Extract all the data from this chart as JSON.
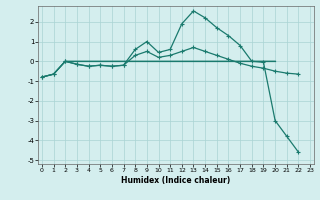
{
  "xlabel": "Humidex (Indice chaleur)",
  "background_color": "#d4eeee",
  "line_color": "#1a7a6e",
  "grid_color": "#aad4d4",
  "x": [
    0,
    1,
    2,
    3,
    4,
    5,
    6,
    7,
    8,
    9,
    10,
    11,
    12,
    13,
    14,
    15,
    16,
    17,
    18,
    19,
    20,
    21,
    22,
    23
  ],
  "series1_x": [
    0,
    1,
    2,
    3,
    4,
    5,
    6,
    7,
    8,
    9,
    10,
    11,
    12,
    13,
    14,
    15,
    16,
    17,
    18,
    19,
    20,
    21,
    22
  ],
  "series1_y": [
    -0.8,
    -0.65,
    0.0,
    -0.15,
    -0.25,
    -0.2,
    -0.25,
    -0.2,
    0.6,
    1.0,
    0.45,
    0.6,
    1.9,
    2.55,
    2.2,
    1.7,
    1.3,
    0.8,
    0.0,
    -0.05,
    -3.0,
    -3.8,
    -4.6
  ],
  "series2_x": [
    0,
    1,
    2,
    3,
    4,
    5,
    6,
    7,
    8,
    9,
    10,
    11,
    12,
    13,
    14,
    15,
    16,
    17,
    18,
    19,
    20,
    21,
    22
  ],
  "series2_y": [
    -0.8,
    -0.65,
    0.0,
    -0.15,
    -0.25,
    -0.2,
    -0.25,
    -0.2,
    0.3,
    0.5,
    0.2,
    0.3,
    0.5,
    0.7,
    0.5,
    0.3,
    0.1,
    -0.1,
    -0.25,
    -0.35,
    -0.5,
    -0.6,
    -0.65
  ],
  "series3_x": [
    2,
    3,
    4,
    5,
    6,
    7,
    8,
    9,
    10,
    11,
    12,
    13,
    14,
    15,
    16,
    17,
    18,
    19,
    20
  ],
  "series3_y": [
    0.0,
    0.0,
    0.0,
    0.0,
    0.0,
    0.0,
    0.0,
    0.0,
    0.0,
    0.0,
    0.0,
    0.0,
    0.0,
    0.0,
    0.0,
    0.0,
    0.0,
    0.0,
    0.0
  ],
  "series4_x": [
    0,
    1,
    2,
    20
  ],
  "series4_y": [
    -0.8,
    -0.65,
    0.0,
    0.0
  ],
  "ylim": [
    -5.2,
    2.8
  ],
  "xlim": [
    -0.3,
    23.3
  ],
  "yticks": [
    -5,
    -4,
    -3,
    -2,
    -1,
    0,
    1,
    2
  ],
  "xticks": [
    0,
    1,
    2,
    3,
    4,
    5,
    6,
    7,
    8,
    9,
    10,
    11,
    12,
    13,
    14,
    15,
    16,
    17,
    18,
    19,
    20,
    21,
    22,
    23
  ]
}
